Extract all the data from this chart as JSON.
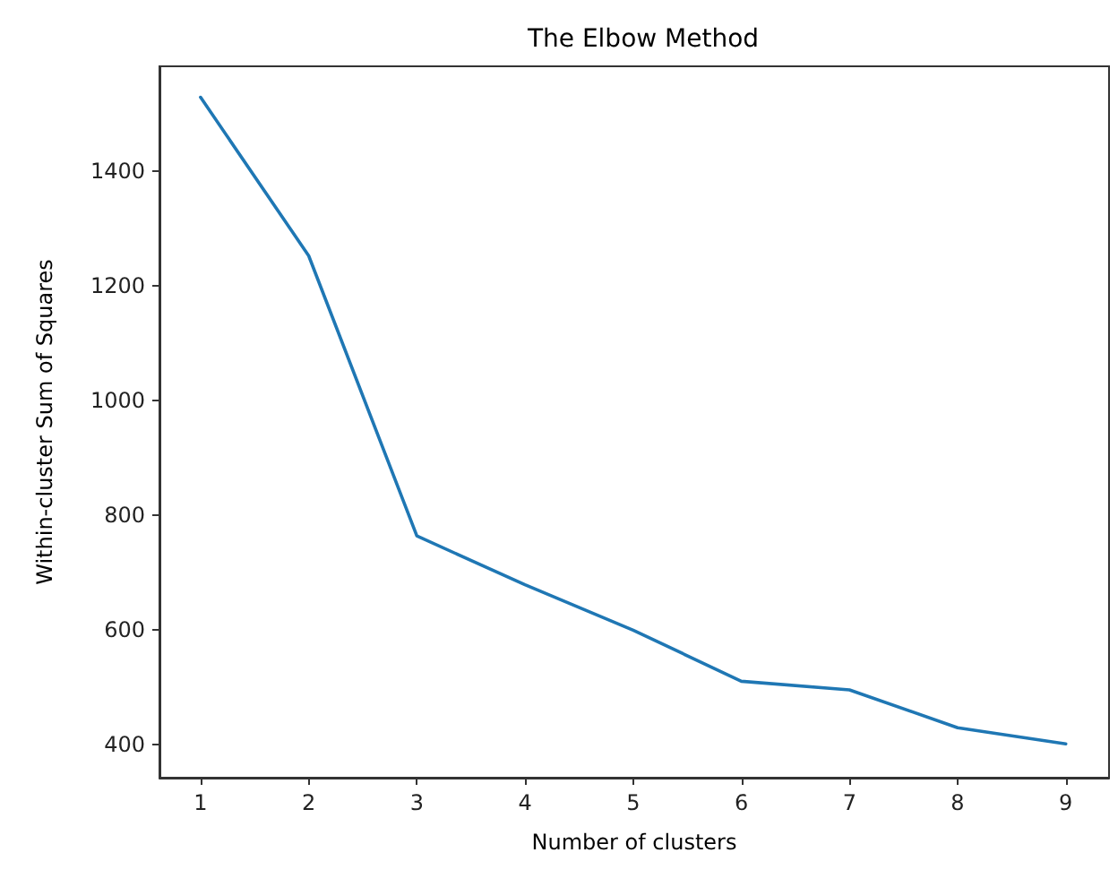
{
  "chart_data": {
    "type": "line",
    "title": "The Elbow Method",
    "xlabel": "Number of clusters",
    "ylabel": "Within-cluster Sum of Squares",
    "x": [
      1,
      2,
      3,
      4,
      5,
      6,
      7,
      8,
      9
    ],
    "series": [
      {
        "color": "#1f77b4",
        "values": [
          1528,
          1252,
          764,
          679,
          600,
          511,
          496,
          430,
          402
        ]
      }
    ],
    "xlim": [
      0.62,
      9.4
    ],
    "xticks": [
      1,
      2,
      3,
      4,
      5,
      6,
      7,
      8,
      9
    ],
    "ylim": [
      343,
      1582
    ],
    "yticks": [
      400,
      600,
      800,
      1000,
      1200,
      1400
    ],
    "grid": false,
    "marker": "none",
    "line_style": "solid"
  }
}
